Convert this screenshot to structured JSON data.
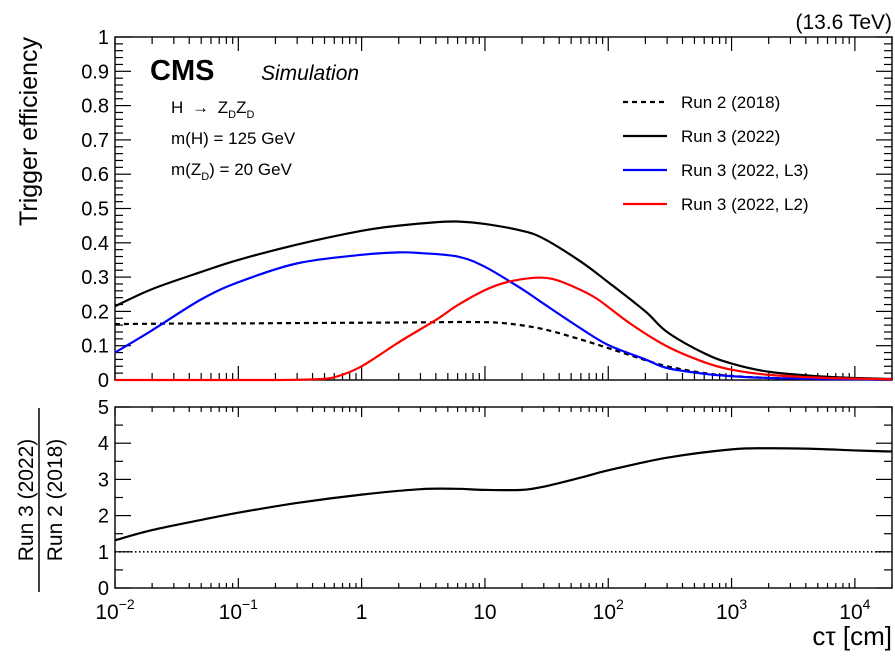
{
  "energy_label": "(13.6 TeV)",
  "cms": {
    "logo": "CMS",
    "tag": "Simulation"
  },
  "process": {
    "line1": {
      "lhs": "H",
      "arrow": "→",
      "z1": "Z",
      "sub1": "D",
      "z2": "Z",
      "sub2": "D"
    },
    "line2": "m(H) = 125 GeV",
    "line3": {
      "pre": "m(Z",
      "sub": "D",
      "post": ") = 20 GeV"
    }
  },
  "colors": {
    "run2": "#000000",
    "run3": "#000000",
    "l3": "#0000ff",
    "l2": "#ff0000",
    "ref": "#000000"
  },
  "chart_data": [
    {
      "type": "line",
      "xscale": "log",
      "xlim": [
        0.01,
        20000
      ],
      "ylim": [
        0,
        1
      ],
      "ylabel": "Trigger efficiency",
      "yticks": [
        "0",
        "0.1",
        "0.2",
        "0.3",
        "0.4",
        "0.5",
        "0.6",
        "0.7",
        "0.8",
        "0.9",
        "1"
      ],
      "legend_position": "top-right",
      "series": [
        {
          "name": "Run 2 (2018)",
          "style": "dashed",
          "x": [
            0.01,
            0.02,
            0.05,
            0.1,
            0.3,
            1,
            3,
            8,
            15,
            30,
            60,
            100,
            200,
            300,
            600,
            1000,
            2000,
            5000,
            10000,
            20000
          ],
          "y": [
            0.163,
            0.164,
            0.165,
            0.165,
            0.166,
            0.167,
            0.168,
            0.169,
            0.165,
            0.148,
            0.118,
            0.093,
            0.058,
            0.04,
            0.02,
            0.012,
            0.006,
            0.003,
            0.002,
            0.001
          ]
        },
        {
          "name": "Run 3 (2022)",
          "style": "solid",
          "x": [
            0.01,
            0.02,
            0.05,
            0.1,
            0.3,
            1,
            2,
            4,
            6,
            10,
            20,
            30,
            60,
            100,
            200,
            300,
            600,
            1000,
            2000,
            5000,
            10000,
            20000
          ],
          "y": [
            0.215,
            0.265,
            0.315,
            0.35,
            0.395,
            0.435,
            0.45,
            0.46,
            0.462,
            0.455,
            0.435,
            0.412,
            0.345,
            0.285,
            0.2,
            0.14,
            0.078,
            0.048,
            0.024,
            0.011,
            0.006,
            0.003
          ]
        },
        {
          "name": "Run 3 (2022, L3)",
          "style": "solid",
          "x": [
            0.01,
            0.02,
            0.05,
            0.1,
            0.3,
            1,
            2,
            3,
            6,
            10,
            20,
            30,
            60,
            100,
            200,
            300,
            600,
            1000,
            2000,
            5000,
            10000,
            20000
          ],
          "y": [
            0.08,
            0.145,
            0.235,
            0.285,
            0.34,
            0.365,
            0.372,
            0.37,
            0.36,
            0.33,
            0.265,
            0.222,
            0.15,
            0.102,
            0.06,
            0.035,
            0.018,
            0.011,
            0.006,
            0.003,
            0.002,
            0.001
          ]
        },
        {
          "name": "Run 3 (2022, L2)",
          "style": "solid",
          "x": [
            0.01,
            0.05,
            0.1,
            0.2,
            0.4,
            0.6,
            1,
            2,
            4,
            6,
            10,
            15,
            25,
            35,
            50,
            80,
            150,
            300,
            600,
            1000,
            2000,
            5000,
            10000,
            20000
          ],
          "y": [
            0.0,
            0.0,
            0.0,
            0.0,
            0.002,
            0.008,
            0.04,
            0.11,
            0.175,
            0.218,
            0.262,
            0.285,
            0.298,
            0.295,
            0.275,
            0.238,
            0.165,
            0.098,
            0.052,
            0.03,
            0.015,
            0.007,
            0.004,
            0.002
          ]
        }
      ]
    },
    {
      "type": "line",
      "xscale": "log",
      "xlim": [
        0.01,
        20000
      ],
      "ylim": [
        0,
        5
      ],
      "xlabel": "cτ [cm]",
      "ylabel_num": "Run 3 (2022)",
      "ylabel_den": "Run 2 (2018)",
      "yticks": [
        "0",
        "1",
        "2",
        "3",
        "4",
        "5"
      ],
      "xticks": [
        {
          "value": 0.01,
          "base": "10",
          "exp": "−2"
        },
        {
          "value": 0.1,
          "base": "10",
          "exp": "−1"
        },
        {
          "value": 1,
          "base": "1",
          "exp": ""
        },
        {
          "value": 10,
          "base": "10",
          "exp": ""
        },
        {
          "value": 100,
          "base": "10",
          "exp": "2"
        },
        {
          "value": 1000,
          "base": "10",
          "exp": "3"
        },
        {
          "value": 10000,
          "base": "10",
          "exp": "4"
        }
      ],
      "reference_line": 1,
      "series": [
        {
          "style": "solid",
          "x": [
            0.01,
            0.02,
            0.05,
            0.1,
            0.3,
            1,
            3,
            6,
            10,
            20,
            30,
            60,
            100,
            300,
            1000,
            2000,
            5000,
            10000,
            20000
          ],
          "y": [
            1.32,
            1.6,
            1.88,
            2.08,
            2.35,
            2.58,
            2.73,
            2.74,
            2.71,
            2.71,
            2.8,
            3.05,
            3.25,
            3.6,
            3.83,
            3.86,
            3.84,
            3.8,
            3.77
          ]
        }
      ]
    }
  ]
}
